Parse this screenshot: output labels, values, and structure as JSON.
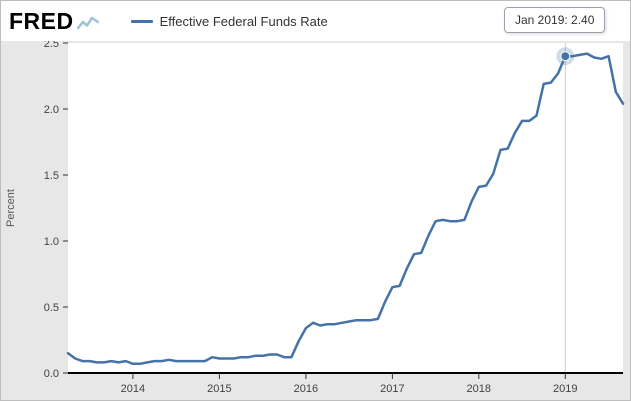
{
  "branding": {
    "logo_text": "FRED",
    "sparkline_color": "#9fc3d6"
  },
  "legend": {
    "label": "Effective Federal Funds Rate",
    "line_color": "#4572a7"
  },
  "tooltip": {
    "text": "Jan 2019: 2.40"
  },
  "chart_data": {
    "type": "line",
    "title": "",
    "xlabel": "",
    "ylabel": "Percent",
    "ylim": [
      0,
      2.5
    ],
    "y_ticks": [
      0.0,
      0.5,
      1.0,
      1.5,
      2.0,
      2.5
    ],
    "y_tick_labels": [
      "0.0",
      "0.5",
      "1.0",
      "1.5",
      "2.0",
      "2.5"
    ],
    "x_ticks": [
      2014,
      2015,
      2016,
      2017,
      2018,
      2019
    ],
    "grid": false,
    "legend_position": "top-left",
    "colors": {
      "plot_bg": "#ffffff",
      "outer_bg": "#e7e7e7",
      "crosshair": "#cccccc",
      "axis": "#000000",
      "tick": "#333333",
      "tick_text": "#424242",
      "axis_title": "#555555"
    },
    "highlight": {
      "date": "2019-01",
      "value": 2.4,
      "label": "Jan 2019: 2.40",
      "crosshair": true
    },
    "series": [
      {
        "name": "Effective Federal Funds Rate",
        "color": "#4572a7",
        "points": [
          [
            "2013-04",
            0.15
          ],
          [
            "2013-05",
            0.11
          ],
          [
            "2013-06",
            0.09
          ],
          [
            "2013-07",
            0.09
          ],
          [
            "2013-08",
            0.08
          ],
          [
            "2013-09",
            0.08
          ],
          [
            "2013-10",
            0.09
          ],
          [
            "2013-11",
            0.08
          ],
          [
            "2013-12",
            0.09
          ],
          [
            "2014-01",
            0.07
          ],
          [
            "2014-02",
            0.07
          ],
          [
            "2014-03",
            0.08
          ],
          [
            "2014-04",
            0.09
          ],
          [
            "2014-05",
            0.09
          ],
          [
            "2014-06",
            0.1
          ],
          [
            "2014-07",
            0.09
          ],
          [
            "2014-08",
            0.09
          ],
          [
            "2014-09",
            0.09
          ],
          [
            "2014-10",
            0.09
          ],
          [
            "2014-11",
            0.09
          ],
          [
            "2014-12",
            0.12
          ],
          [
            "2015-01",
            0.11
          ],
          [
            "2015-02",
            0.11
          ],
          [
            "2015-03",
            0.11
          ],
          [
            "2015-04",
            0.12
          ],
          [
            "2015-05",
            0.12
          ],
          [
            "2015-06",
            0.13
          ],
          [
            "2015-07",
            0.13
          ],
          [
            "2015-08",
            0.14
          ],
          [
            "2015-09",
            0.14
          ],
          [
            "2015-10",
            0.12
          ],
          [
            "2015-11",
            0.12
          ],
          [
            "2015-12",
            0.24
          ],
          [
            "2016-01",
            0.34
          ],
          [
            "2016-02",
            0.38
          ],
          [
            "2016-03",
            0.36
          ],
          [
            "2016-04",
            0.37
          ],
          [
            "2016-05",
            0.37
          ],
          [
            "2016-06",
            0.38
          ],
          [
            "2016-07",
            0.39
          ],
          [
            "2016-08",
            0.4
          ],
          [
            "2016-09",
            0.4
          ],
          [
            "2016-10",
            0.4
          ],
          [
            "2016-11",
            0.41
          ],
          [
            "2016-12",
            0.54
          ],
          [
            "2017-01",
            0.65
          ],
          [
            "2017-02",
            0.66
          ],
          [
            "2017-03",
            0.79
          ],
          [
            "2017-04",
            0.9
          ],
          [
            "2017-05",
            0.91
          ],
          [
            "2017-06",
            1.04
          ],
          [
            "2017-07",
            1.15
          ],
          [
            "2017-08",
            1.16
          ],
          [
            "2017-09",
            1.15
          ],
          [
            "2017-10",
            1.15
          ],
          [
            "2017-11",
            1.16
          ],
          [
            "2017-12",
            1.3
          ],
          [
            "2018-01",
            1.41
          ],
          [
            "2018-02",
            1.42
          ],
          [
            "2018-03",
            1.51
          ],
          [
            "2018-04",
            1.69
          ],
          [
            "2018-05",
            1.7
          ],
          [
            "2018-06",
            1.82
          ],
          [
            "2018-07",
            1.91
          ],
          [
            "2018-08",
            1.91
          ],
          [
            "2018-09",
            1.95
          ],
          [
            "2018-10",
            2.19
          ],
          [
            "2018-11",
            2.2
          ],
          [
            "2018-12",
            2.27
          ],
          [
            "2019-01",
            2.4
          ],
          [
            "2019-02",
            2.4
          ],
          [
            "2019-03",
            2.41
          ],
          [
            "2019-04",
            2.42
          ],
          [
            "2019-05",
            2.39
          ],
          [
            "2019-06",
            2.38
          ],
          [
            "2019-07",
            2.4
          ],
          [
            "2019-08",
            2.13
          ],
          [
            "2019-09",
            2.04
          ]
        ]
      }
    ]
  }
}
